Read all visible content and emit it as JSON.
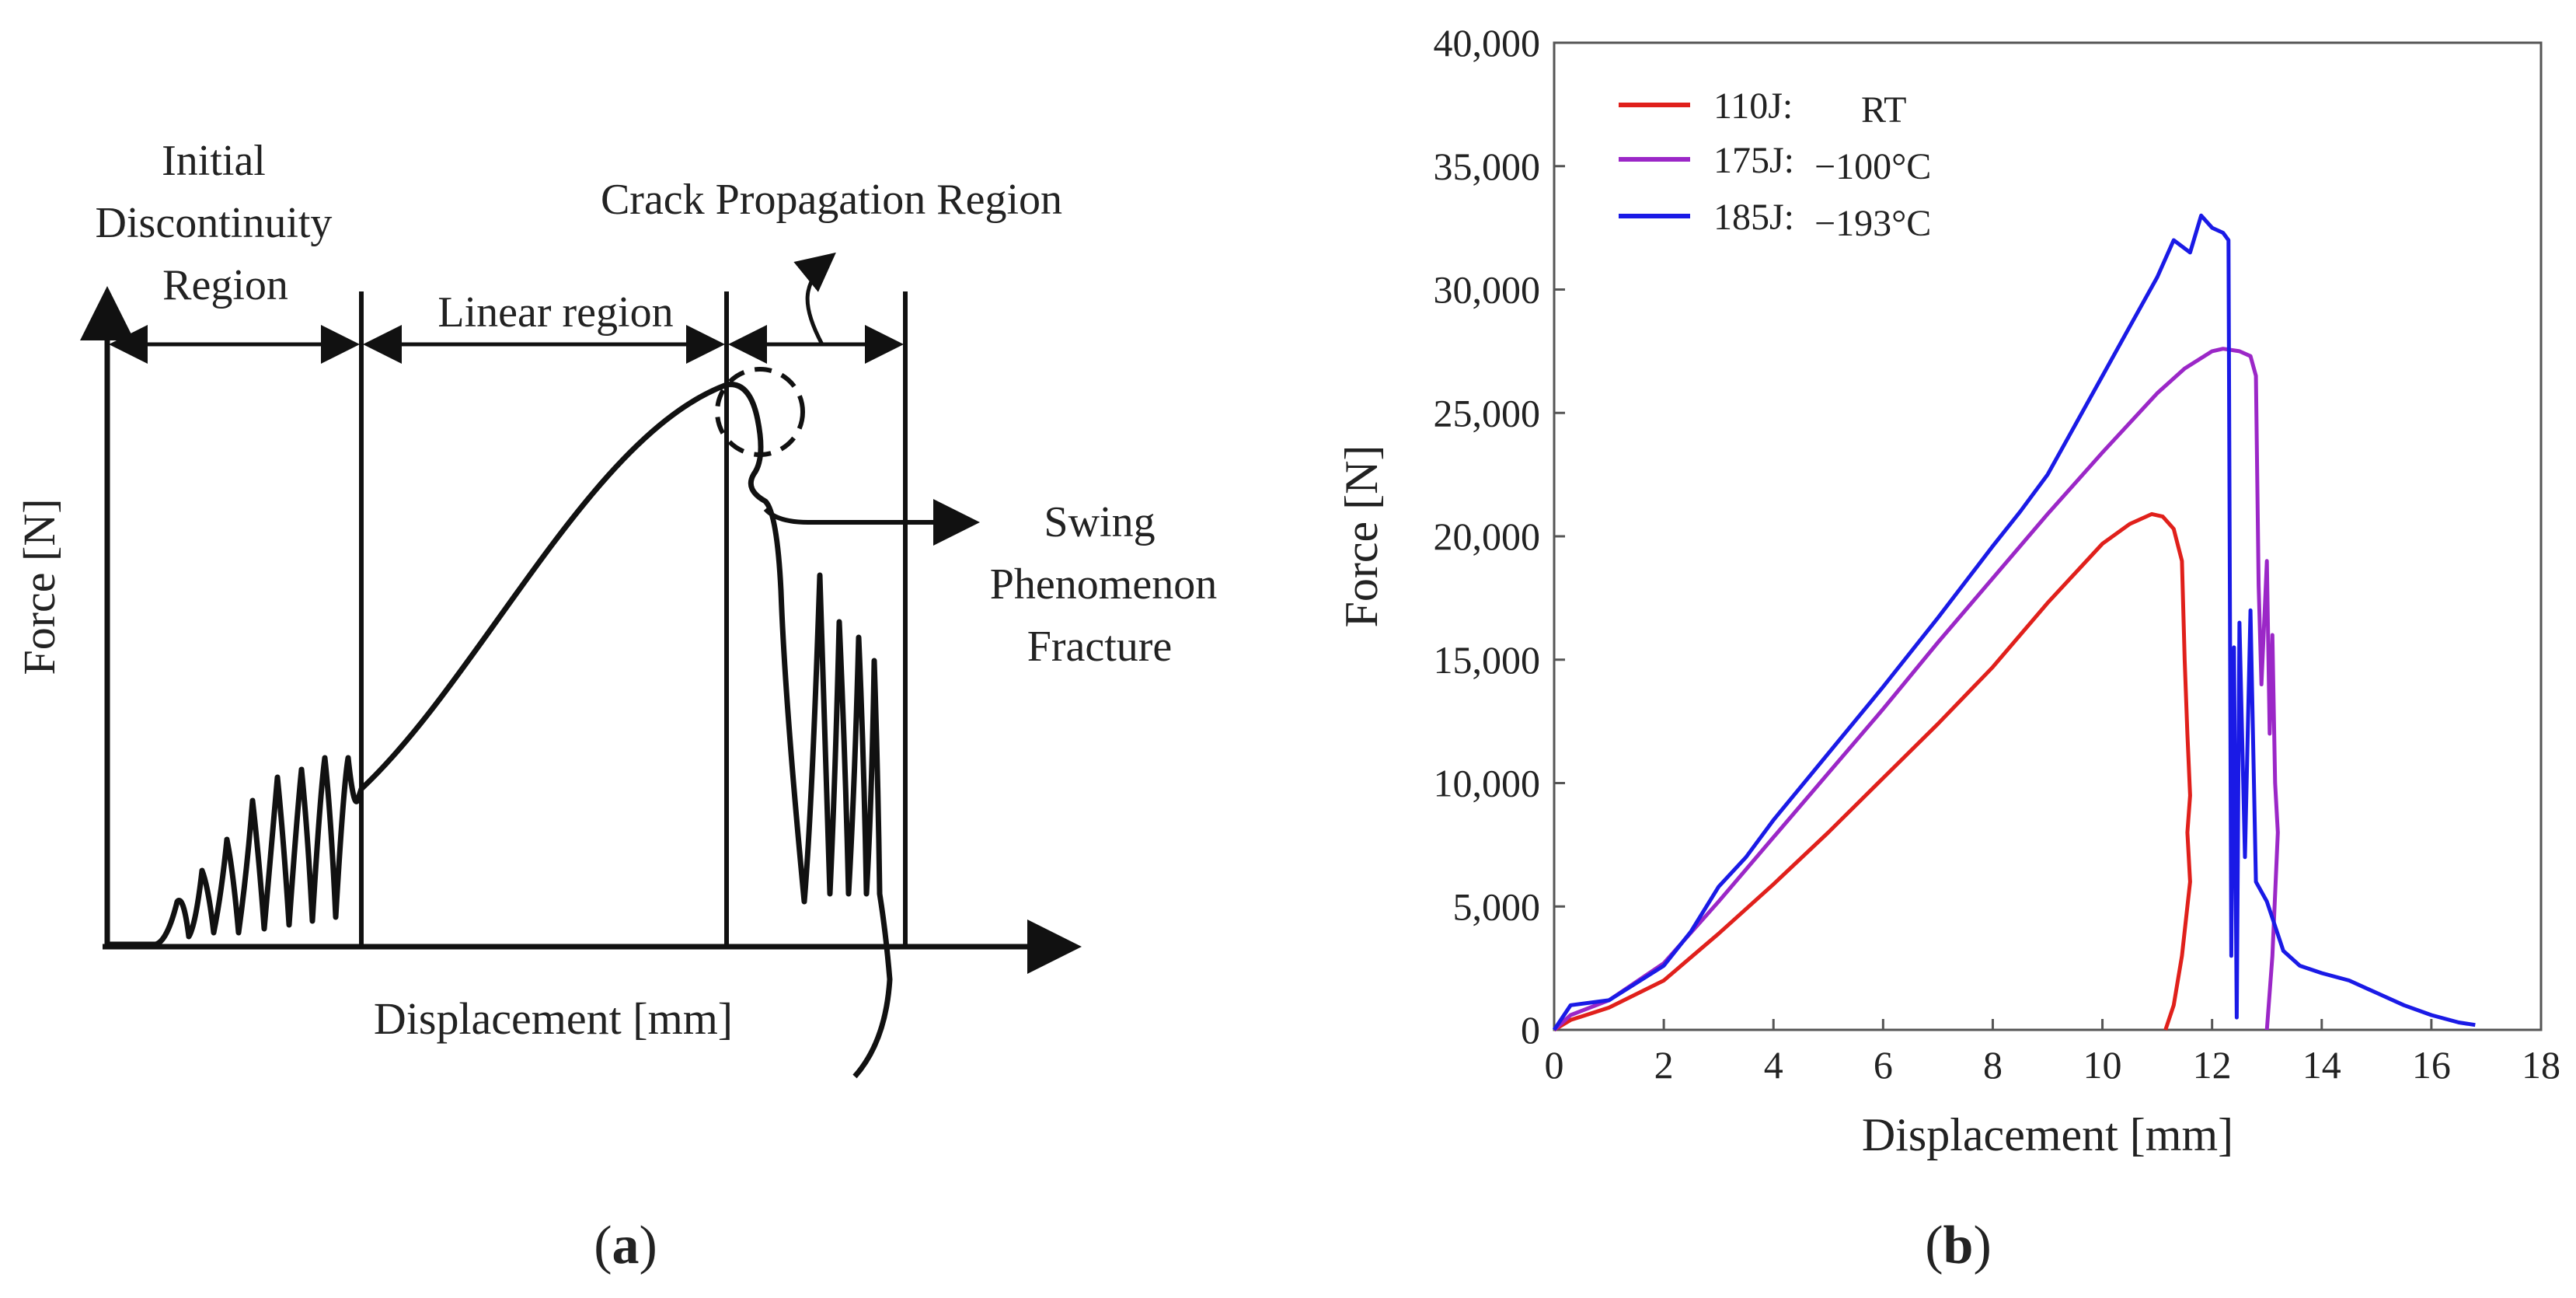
{
  "chart_data": [
    {
      "type": "diagram",
      "panel_label": "a",
      "title": "",
      "xlabel": "Displacement [mm]",
      "ylabel": "Force [N]",
      "annotations": {
        "initial_1": "Initial",
        "initial_2": "Discontinuity",
        "initial_3": "Region",
        "linear": "Linear region",
        "crack": "Crack Propagation Region",
        "swing_1": "Swing",
        "swing_2": "Phenomenon",
        "swing_3": "Fracture"
      }
    },
    {
      "type": "line",
      "panel_label": "b",
      "xlabel": "Displacement [mm]",
      "ylabel": "Force [N]",
      "xlim": [
        0,
        18
      ],
      "ylim": [
        0,
        40000
      ],
      "x_ticks": [
        "0",
        "2",
        "4",
        "6",
        "8",
        "10",
        "12",
        "14",
        "16",
        "18"
      ],
      "y_ticks": [
        "0",
        "5,000",
        "10,000",
        "15,000",
        "20,000",
        "25,000",
        "30,000",
        "35,000",
        "40,000"
      ],
      "grid": false,
      "legend_position": "top-left",
      "series": [
        {
          "name": "110J:",
          "condition": "RT",
          "color": "#e0201b",
          "x": [
            0,
            0.3,
            1,
            2,
            3,
            4,
            5,
            6,
            7,
            8,
            9,
            10,
            10.5,
            10.9,
            11.1,
            11.3,
            11.45,
            11.5,
            11.55,
            11.6,
            11.55,
            11.6,
            11.45,
            11.3,
            11.15
          ],
          "y": [
            0,
            400,
            900,
            2000,
            3900,
            5900,
            8000,
            10200,
            12400,
            14700,
            17300,
            19700,
            20500,
            20900,
            20800,
            20300,
            19000,
            15000,
            12000,
            9500,
            8000,
            6000,
            3000,
            1000,
            0
          ]
        },
        {
          "name": "175J:",
          "condition": "−100°C",
          "color": "#9b27c7",
          "x": [
            0,
            0.3,
            1,
            2,
            3,
            4,
            5,
            6,
            7,
            8,
            9,
            10,
            11,
            11.5,
            12,
            12.2,
            12.5,
            12.7,
            12.8,
            12.85,
            12.9,
            13,
            13.05,
            13.1,
            13.15,
            13.2,
            13.1,
            13.0
          ],
          "y": [
            0,
            600,
            1200,
            2700,
            5200,
            7800,
            10400,
            13000,
            15700,
            18300,
            20900,
            23400,
            25800,
            26800,
            27500,
            27600,
            27500,
            27300,
            26500,
            18000,
            14000,
            19000,
            12000,
            16000,
            10000,
            8000,
            3000,
            0
          ]
        },
        {
          "name": "185J:",
          "condition": "−193°C",
          "color": "#1a1ae6",
          "x": [
            0,
            0.3,
            1,
            2,
            2.5,
            3,
            3.5,
            4,
            5,
            6,
            7,
            8,
            8.5,
            9,
            9.5,
            10,
            10.5,
            11,
            11.3,
            11.6,
            11.8,
            12,
            12.2,
            12.3,
            12.35,
            12.4,
            12.45,
            12.5,
            12.6,
            12.7,
            12.8,
            13,
            13.3,
            13.6,
            14,
            14.5,
            15,
            15.5,
            16,
            16.5,
            16.8
          ],
          "y": [
            0,
            1000,
            1200,
            2600,
            4000,
            5800,
            7000,
            8500,
            11200,
            13900,
            16700,
            19600,
            21000,
            22500,
            24500,
            26500,
            28500,
            30500,
            32000,
            31500,
            33000,
            32500,
            32300,
            32000,
            3000,
            15500,
            500,
            16500,
            7000,
            17000,
            6000,
            5200,
            3200,
            2600,
            2300,
            2000,
            1500,
            1000,
            600,
            300,
            200
          ]
        }
      ]
    }
  ],
  "captions": {
    "a": "a",
    "b": "b"
  }
}
